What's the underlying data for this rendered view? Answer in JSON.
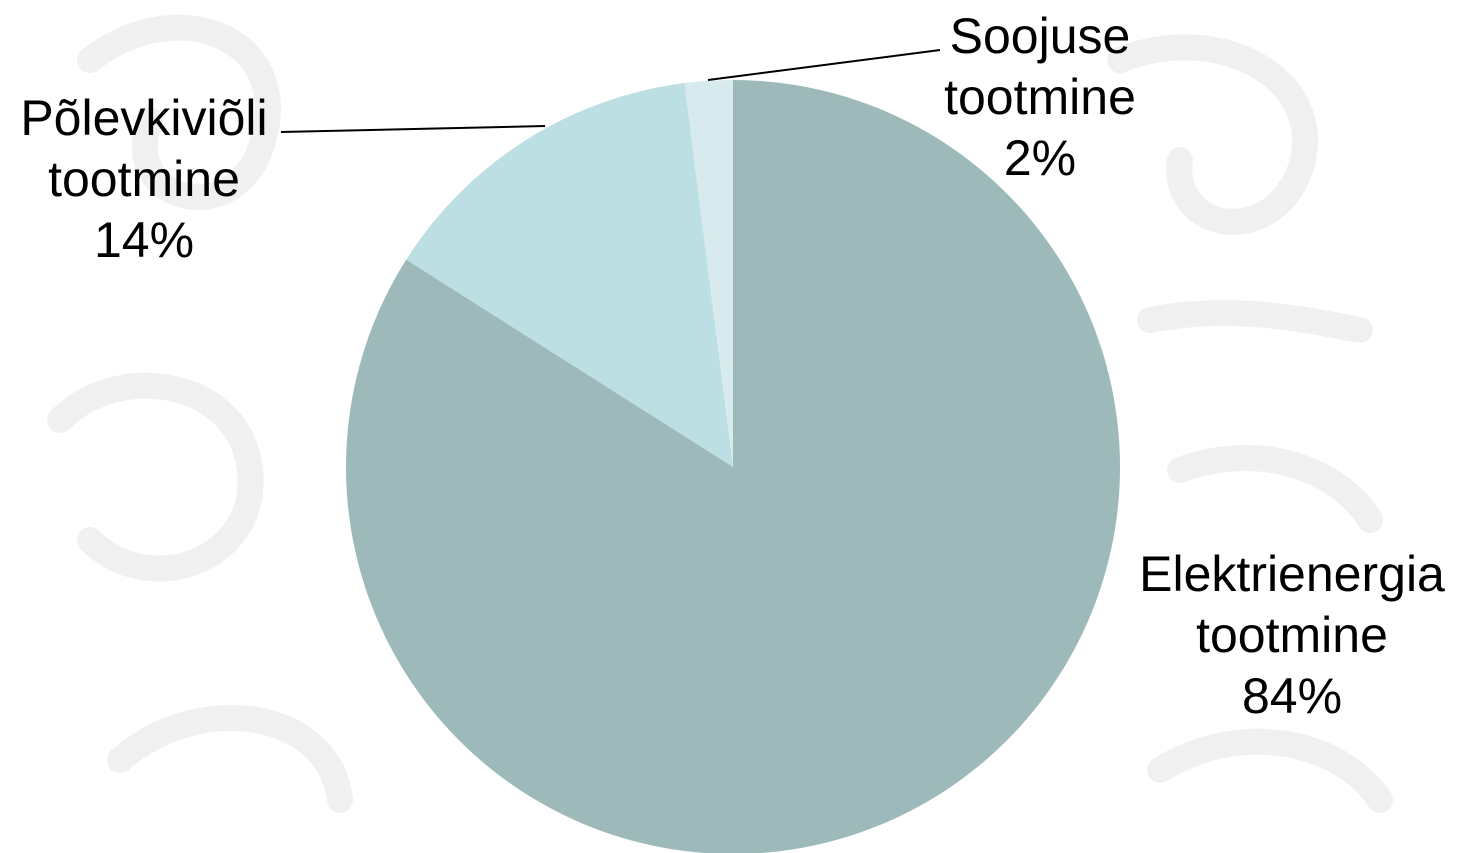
{
  "chart_data": {
    "type": "pie",
    "title": "",
    "start_angle_deg": 0,
    "direction": "clockwise",
    "legend": "none",
    "slices": [
      {
        "name": "Elektrienergia tootmine",
        "label_lines": [
          "Elektrienergia",
          "tootmine"
        ],
        "value": 84,
        "value_label": "84%",
        "color": "#9db9ba"
      },
      {
        "name": "Põlevkiviõli tootmine",
        "label_lines": [
          "Põlevkiviõli",
          "tootmine"
        ],
        "value": 14,
        "value_label": "14%",
        "color": "#bbdfe2"
      },
      {
        "name": "Soojuse tootmine",
        "label_lines": [
          "Soojuse",
          "tootmine"
        ],
        "value": 2,
        "value_label": "2%",
        "color": "#d7eaed"
      }
    ]
  }
}
